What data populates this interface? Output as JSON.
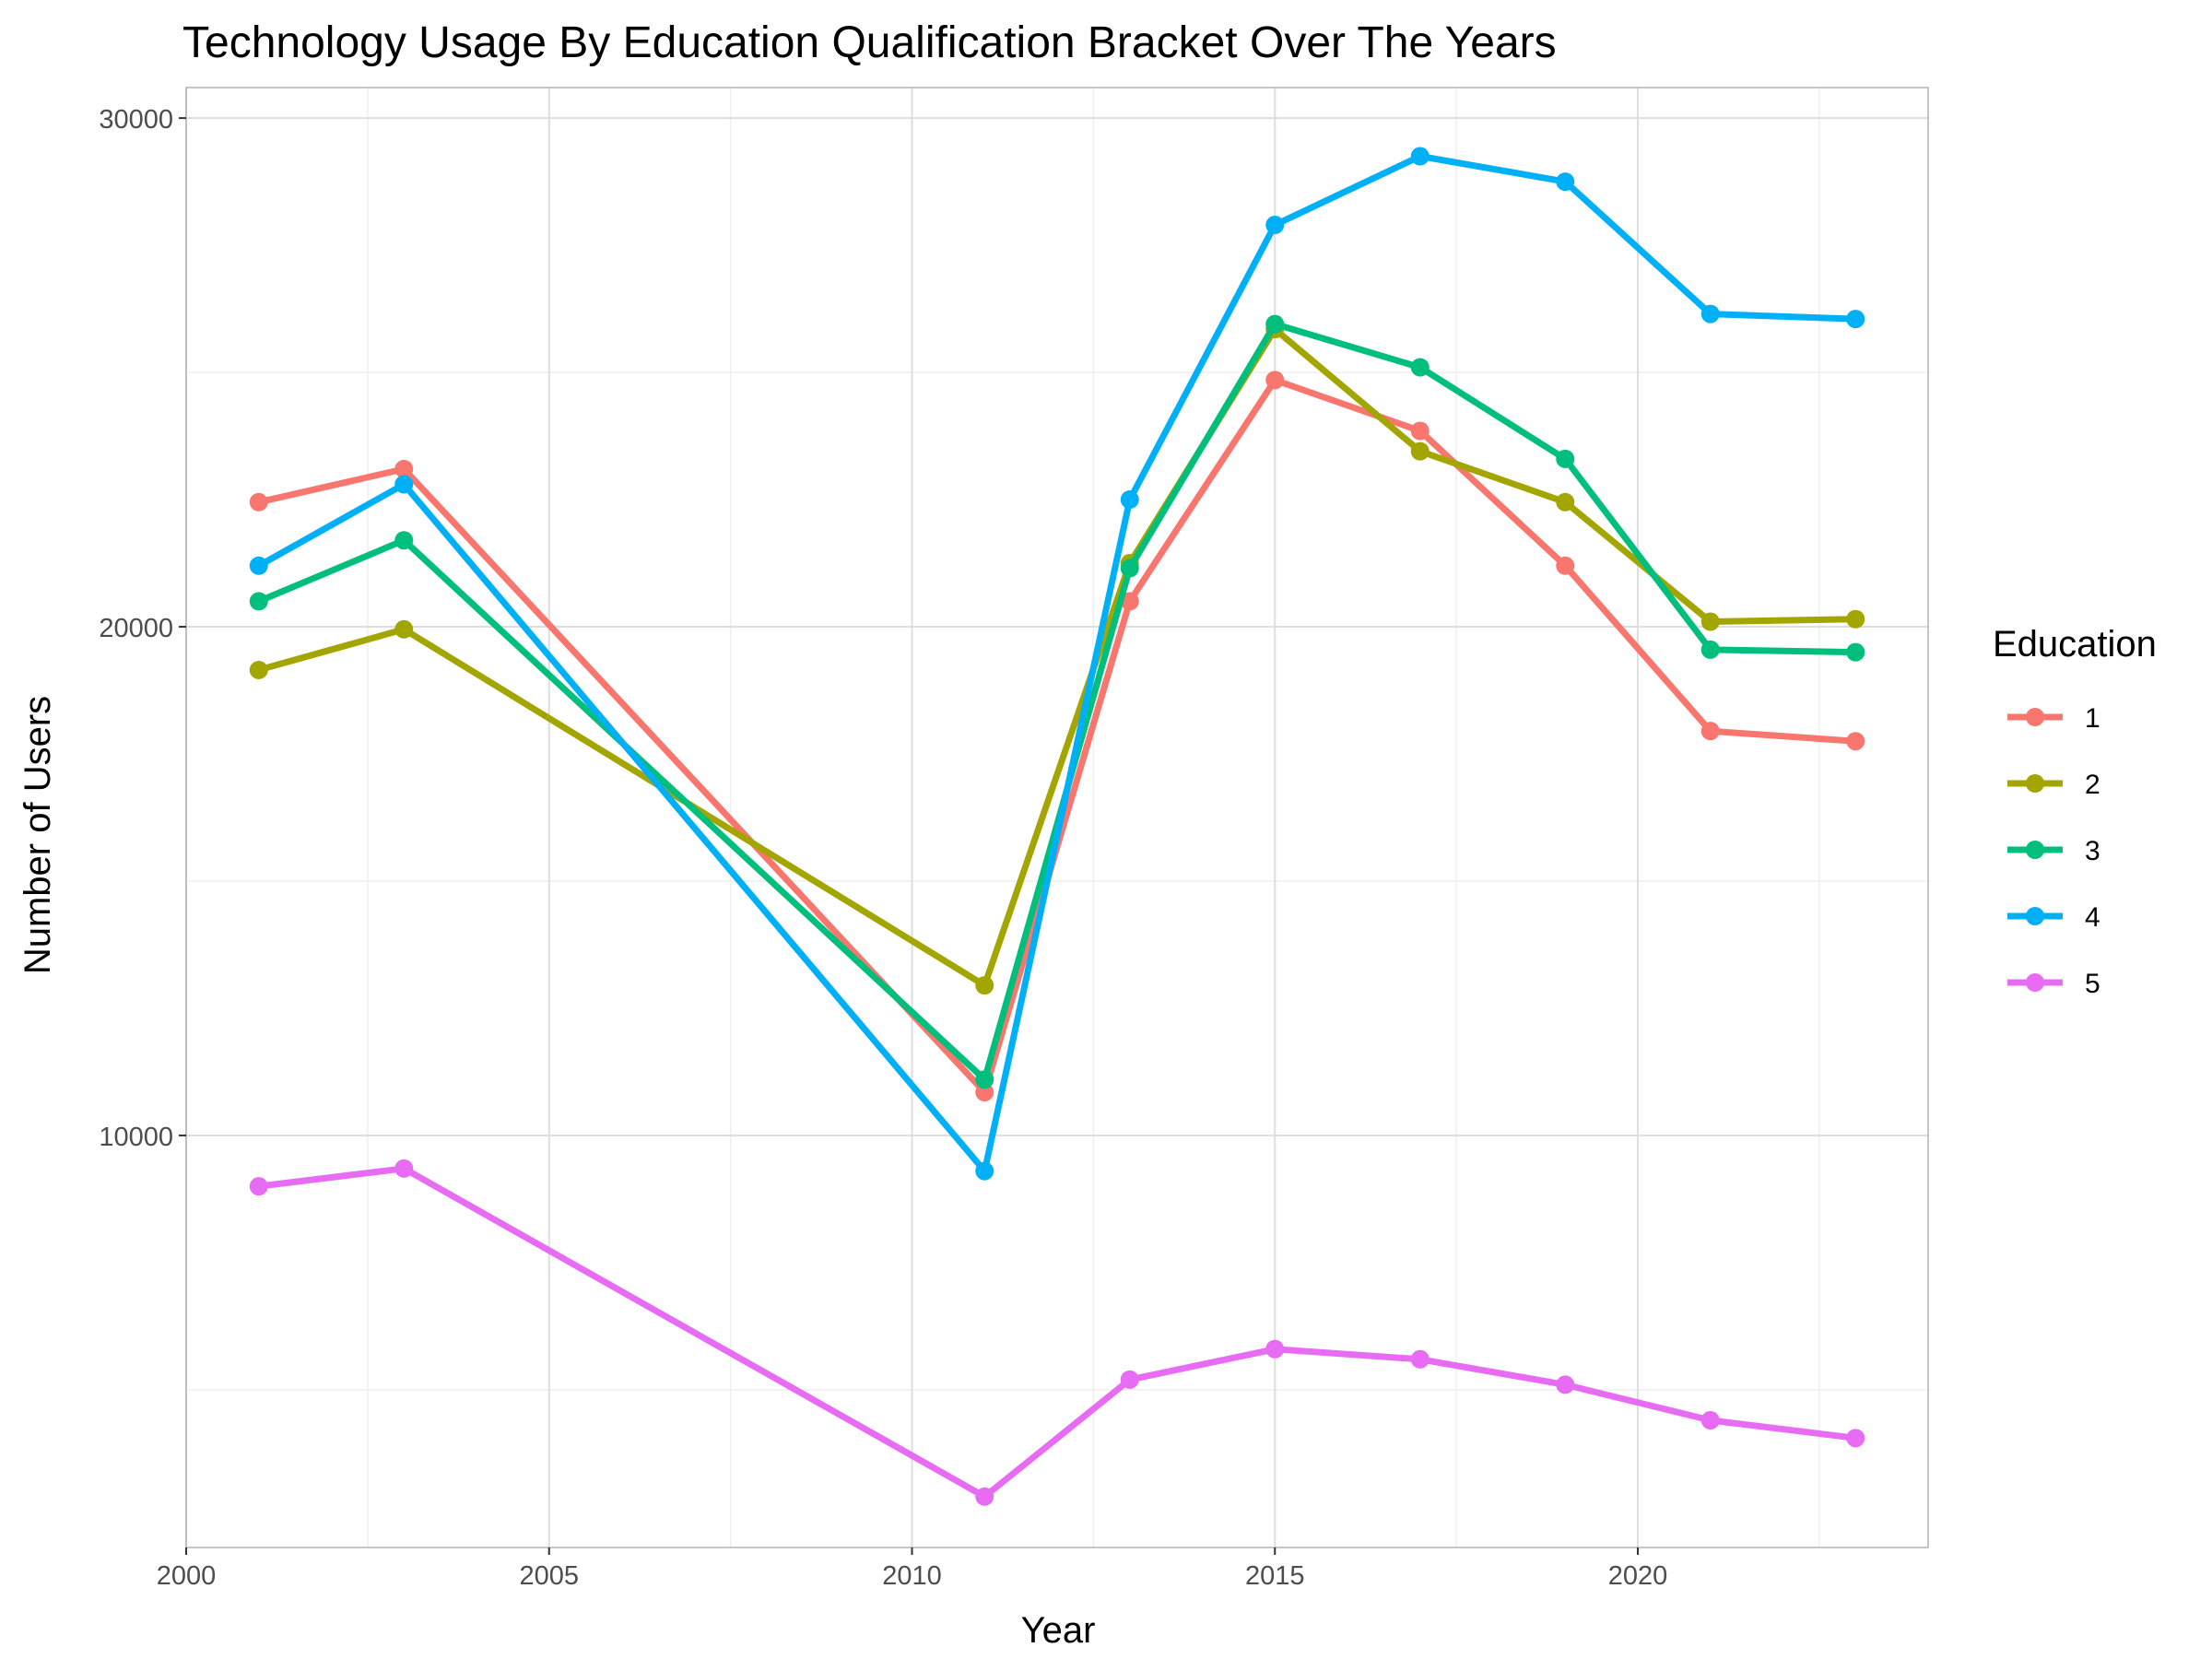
{
  "chart_data": {
    "type": "line",
    "title": "Technology Usage By  Education Qualification Bracket Over The Years",
    "xlabel": "Year",
    "ylabel": "Number of Users",
    "xlim": [
      2000,
      2024
    ],
    "ylim": [
      1900,
      30600
    ],
    "x_ticks": [
      2000,
      2005,
      2010,
      2015,
      2020
    ],
    "y_ticks": [
      10000,
      20000,
      30000
    ],
    "grid": true,
    "legend": {
      "title": "Education",
      "position": "right"
    },
    "x": [
      2001,
      2003,
      2011,
      2013,
      2015,
      2017,
      2019,
      2021,
      2023
    ],
    "series": [
      {
        "name": "1",
        "color": "#F8766D",
        "values": [
          22450,
          23100,
          10850,
          20500,
          24850,
          23850,
          21200,
          17950,
          17750
        ]
      },
      {
        "name": "2",
        "color": "#A3A500",
        "values": [
          19150,
          19950,
          12950,
          21250,
          25850,
          23450,
          22450,
          20100,
          20150
        ]
      },
      {
        "name": "3",
        "color": "#00BF7D",
        "values": [
          20500,
          21700,
          11100,
          21150,
          25950,
          25100,
          23300,
          19550,
          19500
        ]
      },
      {
        "name": "4",
        "color": "#00B0F6",
        "values": [
          21200,
          22800,
          9300,
          22500,
          27900,
          29250,
          28750,
          26150,
          26050
        ]
      },
      {
        "name": "5",
        "color": "#E76BF3",
        "values": [
          9000,
          9350,
          2900,
          5200,
          5800,
          5600,
          5100,
          4400,
          4050
        ]
      }
    ]
  }
}
